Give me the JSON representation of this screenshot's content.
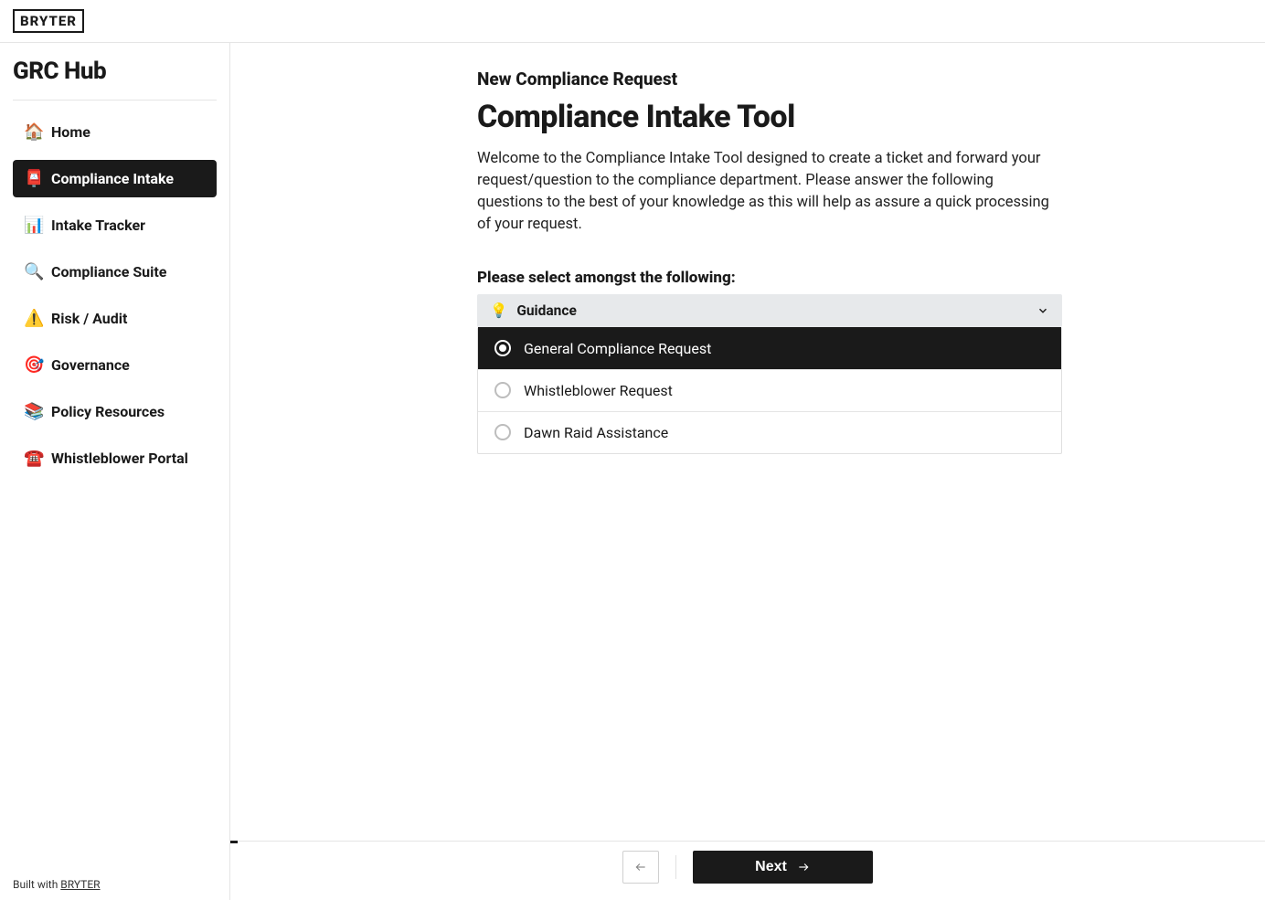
{
  "brand": "BRYTER",
  "sidebar": {
    "title": "GRC Hub",
    "items": [
      {
        "icon": "🏠",
        "label": "Home",
        "active": false
      },
      {
        "icon": "📮",
        "label": "Compliance Intake",
        "active": true
      },
      {
        "icon": "📊",
        "label": "Intake Tracker",
        "active": false
      },
      {
        "icon": "🔍",
        "label": "Compliance Suite",
        "active": false
      },
      {
        "icon": "⚠️",
        "label": "Risk / Audit",
        "active": false
      },
      {
        "icon": "🎯",
        "label": "Governance",
        "active": false
      },
      {
        "icon": "📚",
        "label": "Policy Resources",
        "active": false
      },
      {
        "icon": "☎️",
        "label": "Whistleblower Portal",
        "active": false
      }
    ],
    "footer_prefix": "Built with ",
    "footer_link": "BRYTER"
  },
  "form": {
    "subheader": "New Compliance Request",
    "title": "Compliance Intake Tool",
    "intro": "Welcome to the Compliance Intake Tool designed to create a ticket and forward your request/question to the compliance department. Please answer the following questions to the best of your knowledge as this will help as assure a quick processing of your request.",
    "question": "Please select amongst the following:",
    "guidance_icon": "💡",
    "guidance_label": "Guidance",
    "options": [
      {
        "label": "General Compliance Request",
        "selected": true
      },
      {
        "label": "Whistleblower Request",
        "selected": false
      },
      {
        "label": "Dawn Raid Assistance",
        "selected": false
      }
    ]
  },
  "footer": {
    "next": "Next"
  },
  "colors": {
    "primary": "#1a1a1a",
    "border": "#e5e5e5",
    "guidance_bg": "#e7e9eb"
  }
}
